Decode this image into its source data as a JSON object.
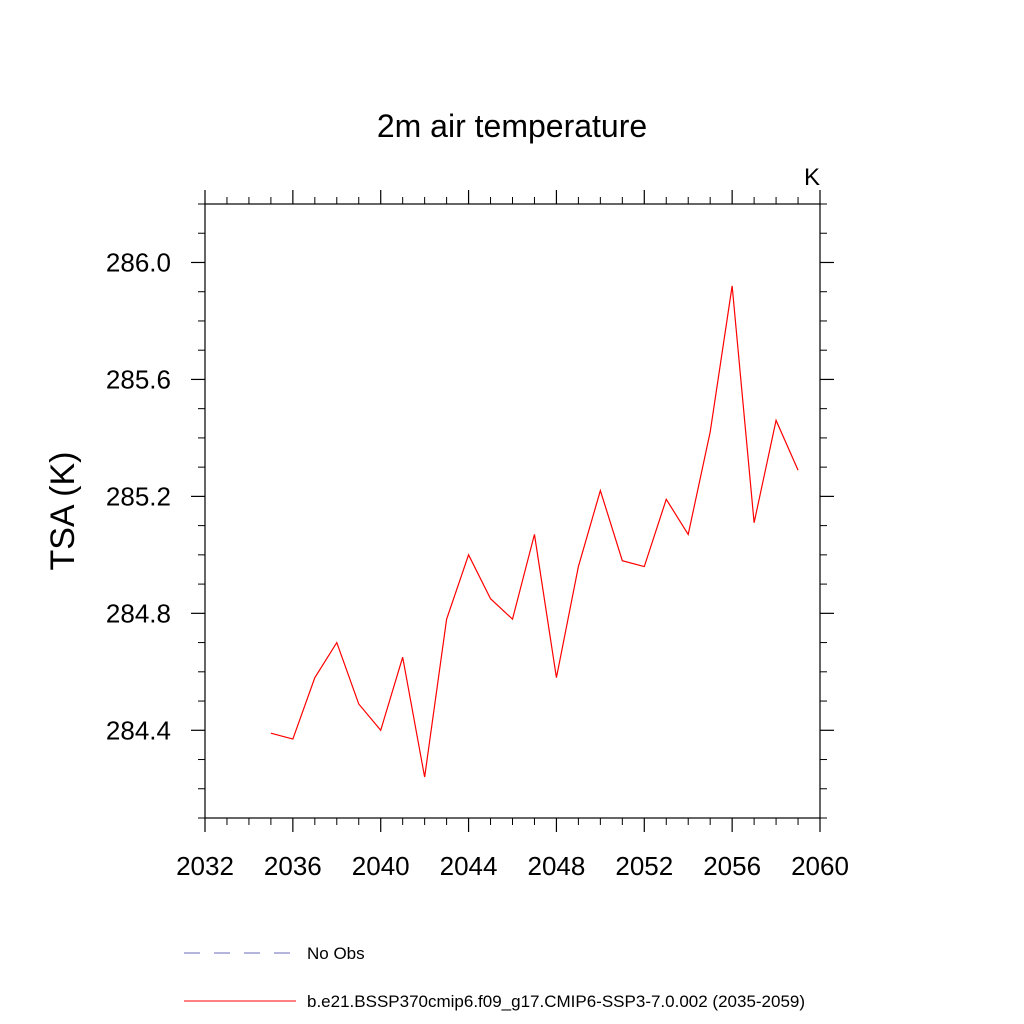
{
  "chart_data": {
    "type": "line",
    "title": "2m air temperature",
    "units_label": "K",
    "xlabel": "",
    "ylabel": "TSA  (K)",
    "xlim": [
      2032,
      2060
    ],
    "ylim": [
      284.1,
      286.2
    ],
    "x_ticks": [
      2032,
      2036,
      2040,
      2044,
      2048,
      2052,
      2056,
      2060
    ],
    "x_tick_labels": [
      "2032",
      "2036",
      "2040",
      "2044",
      "2048",
      "2052",
      "2056",
      "2060"
    ],
    "y_ticks": [
      284.4,
      284.8,
      285.2,
      285.6,
      286.0
    ],
    "y_tick_labels": [
      "284.4",
      "284.8",
      "285.2",
      "285.6",
      "286.0"
    ],
    "x_minor_step": 1,
    "y_minor_step": 0.1,
    "grid": false,
    "legend_position": "bottom-left",
    "series": [
      {
        "name": "b.e21.BSSP370cmip6.f09_g17.CMIP6-SSP3-7.0.002 (2035-2059)",
        "color": "#ff0000",
        "style": "solid",
        "x": [
          2035,
          2036,
          2037,
          2038,
          2039,
          2040,
          2041,
          2042,
          2043,
          2044,
          2045,
          2046,
          2047,
          2048,
          2049,
          2050,
          2051,
          2052,
          2053,
          2054,
          2055,
          2056,
          2057,
          2058,
          2059
        ],
        "values": [
          284.39,
          284.37,
          284.58,
          284.7,
          284.49,
          284.4,
          284.65,
          284.24,
          284.78,
          285.0,
          284.85,
          284.78,
          285.07,
          284.58,
          284.96,
          285.22,
          284.98,
          284.96,
          285.19,
          285.07,
          285.42,
          285.92,
          285.11,
          285.46,
          285.29
        ]
      }
    ],
    "legend": [
      {
        "label": "No Obs",
        "color": "#6a6ab8",
        "style": "dashed"
      },
      {
        "label": "b.e21.BSSP370cmip6.f09_g17.CMIP6-SSP3-7.0.002 (2035-2059)",
        "color": "#ff0000",
        "style": "solid"
      }
    ]
  }
}
